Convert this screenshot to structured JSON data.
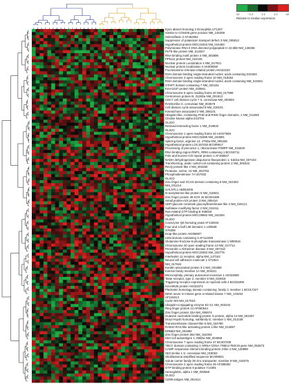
{
  "legend": {
    "ticks": [
      "≤2",
      "−1.2",
      "1:1",
      "1.2",
      "≥2"
    ],
    "colors": [
      "#22b04a",
      "#1a6a2c",
      "#0b0b0b",
      "#7a1414",
      "#dd2020"
    ],
    "caption": "Relative to median expression"
  },
  "heatmap": {
    "rows": 117,
    "cols": 34,
    "positive": "#dd2020",
    "negative": "#1fae46",
    "dendrogram_colors": {
      "left": "#2a3b8c",
      "right": "#d9a021",
      "rows": "#333333"
    }
  },
  "genes": [
    "Eyes absent homolog 2 Drosophila  U71207",
    "Similar to CG6405 gene product  NM_145269",
    "Selenoflavin 2  AF462052",
    "Suppressor of potassium transport defect 3  NM_005813",
    "Hypothetical protein MGC41816  NM_016460",
    "Polymerase RNA II DNA directed polypeptide H 22.8kD  NM_138338",
    "PeT9-like protein  NM_013257",
    "RNA binding motif protein 4  NM_002896",
    "PP5111 protein  NM_022106",
    "Nuclear protein Localization 4  NM_017921",
    "Nuclear protein localization 4  AK000060",
    "Fructosamine-3-kinase-related protein  AK022233",
    "RSH domain binding single-stranded nucleic acids containing  D31602",
    "Chromosome 3 open reading frame 10  NM_018462",
    "RSH domain binding single-stranded nucleic acids containing  NM_015361",
    "START domain containing 7  NM_020151",
    "KIAA1037 protein  NM_020661",
    "Chromosome 6 open reading frame 40  NM_017998",
    "Centromere protein B, 312kDa  NM_001813",
    "CDC7 cell division cycle 7 S. cerevisiae  NM_003503",
    "RAD54-like S. cerevisiae  NM_003579",
    "Cell division cycle associated 8  NM_018101",
    "Kinetochore associated 2  NM_006101",
    "Ubiquitin-like, containing PHD and RING finger domains, 1  NM_013282",
    "Choline kinase alpha  D10704",
    "OLIGO",
    "Retinoid-interacting factor 1  NM_018632",
    "OLIGO",
    "Chromosome 1 open reading frame 33  AK027569",
    "Hypothetical protein MGC33486  NM_153691",
    "Splicing factor, arginine 13, 47kDa  NM_005435",
    "Hypothetical protein LOC157253  BC009817",
    "Processing of precursor 1, ribonuclease P/MRP  NM_015029",
    "RNA binding region RNP1, RRM containing 1  BC019711",
    "Pole and leucine-rich repeat protein 1  AF158637",
    "NADH dehydrogenase ubiquinone flavoprotein 1, 51kDa  NM_007103",
    "Transforming, acidic coiled-coil containing protein 3  NM_006342",
    "RecQ protein-like 4  NM_004260",
    "Protease, serine, 15  NM_004793",
    "Phosphodiesterase 7A  U67932",
    "OLIGO",
    "Zinc finger and SCAN domain containing 5  NM_024303",
    "NM_031214",
    "GALNTL1  AB053205",
    "N-acetylserine-like protein 5  NM_018621",
    "Zinc finger protein 36 KOX 32  BC004480",
    "Small proline-rich protein 3  NM_005416",
    "UDP-glucose ceramide glucosyltransferase-like 2  NM_020121",
    "Sulfatase modifying factor 2  NM_015411",
    "Ras-related GTP binding B  X99018",
    "Hypothetical protein MGC29662  NM_152294",
    "OLIGO",
    "Coenzyme Q6 homolog yeast  AF132944",
    "Four and a half LIM domains 1  U29538",
    "S75308",
    "Drap-like protein  AK056607",
    "LEM domain containing 3  AF112299",
    "Glutamine-fructose-6-phosphate transaminase 1  M90516",
    "Chromosome 20 open reading frame 13  NM_017714",
    "Presenilin 1 Alzheimer disease 3  NM_007318",
    "Hypothetical protein MGC33302  NM_152776",
    "Interleukin 11 receptor, alpha  NM_147162",
    "Neural cell adhesion molecule 1  S71824",
    "NM_017624",
    "Keratin associated protein 3-1  NM_031958",
    "Kinesin family member 1A  NM_004321",
    "Microcephaly, primary autosomal recessive 1  AK023909",
    "Taste receptor, type 2, member 8  NM_023918",
    "Triggering receptor expressed on myeloid cells 4  BC025395",
    "KIAA0626 protein  AK023372",
    "Pleckstrin homology domain containing, family C member 1  BC017327",
    "NIMA never in mitosis gene a-related kinase 7  NM_133494",
    "AF218313",
    "Cyclin M3  NM_017623",
    "Ubiquitin-conjugating enzyme E2 G1  NM_003342",
    "Ring finger protein 14  AF060544",
    "Zinc finger protein 33A  NM_006974",
    "Guanine nucleotide binding protein G protein, alpha 14  NM_004297",
    "DnaJ Hsp40 homolog, subfamily D, member 1  NM_013238",
    "Transmembrane channel-like 5  NM_024780",
    "RAB10 RAS-like activating protein 1-like  NM_014857",
    "ERBB3  NM_001982",
    "Zinc finger protein 554  NM_152303",
    "Islet cell autoantigen 1, 69kDa  NM_004968",
    "Chromosome 7 open reading frame 37  BC007209",
    "TBCC domain containing 1 mRNA CDNA 7NM12 RKE19 gene  NM_052873",
    "CAMP responsive element binding protein 3-like 4  NM_130898",
    "SEC15-like 1 S. cerevisiae  NM_019053",
    "Glioblastoma amplified sequence  BC009921",
    "Solute carrier family 39 zinc transporter, member 9  NM_018375",
    "Chromosome 2 open reading frame 26  AF288392",
    "GTP binding protein 8 putative  Y14391",
    "Hemoglobin, alpha 1  NM_000558",
    "OLIGO",
    "CD99 antigen  NM_002414"
  ]
}
